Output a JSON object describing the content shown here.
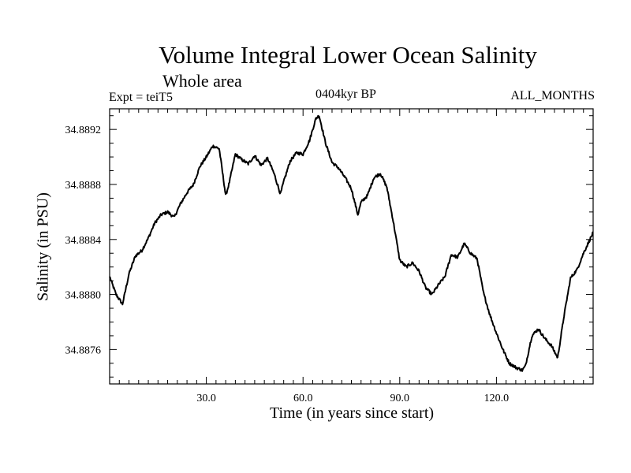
{
  "chart_data": {
    "type": "line",
    "title": "Volume Integral Lower Ocean Salinity",
    "subtitle": "Whole area",
    "left_label": "Expt = teiT5",
    "center_label": "0404kyr BP",
    "right_label": "ALL_MONTHS",
    "xlabel": "Time (in years since start)",
    "ylabel": "Salinity (in PSU)",
    "xlim": [
      0,
      150
    ],
    "ylim": [
      34.88735,
      34.88935
    ],
    "xticks": [
      30,
      60,
      90,
      120
    ],
    "xtick_labels": [
      "30.0",
      "60.0",
      "90.0",
      "120.0"
    ],
    "yticks": [
      34.8876,
      34.888,
      34.8884,
      34.8888,
      34.8892
    ],
    "ytick_labels": [
      "34.8876",
      "34.8880",
      "34.8884",
      "34.8888",
      "34.8892"
    ],
    "color": "#000000",
    "series": [
      {
        "name": "Salinity",
        "x": [
          0,
          2,
          4,
          6,
          8,
          10,
          12,
          14,
          16,
          18,
          20,
          22,
          24,
          26,
          28,
          30,
          32,
          34,
          36,
          37,
          39,
          41,
          43,
          45,
          47,
          49,
          51,
          53,
          54,
          56,
          58,
          60,
          62,
          64,
          65,
          67,
          69,
          71,
          73,
          75,
          77,
          78,
          80,
          82,
          84,
          86,
          88,
          90,
          92,
          94,
          96,
          98,
          100,
          102,
          104,
          106,
          108,
          110,
          112,
          114,
          116,
          118,
          120,
          122,
          124,
          126,
          128,
          129,
          131,
          133,
          135,
          137,
          139,
          141,
          143,
          145,
          147,
          149,
          150
        ],
        "y": [
          34.88813,
          34.888,
          34.88793,
          34.88815,
          34.88828,
          34.88832,
          34.88841,
          34.88852,
          34.88858,
          34.8886,
          34.88856,
          34.88866,
          34.88874,
          34.8888,
          34.88893,
          34.889,
          34.88908,
          34.88906,
          34.88872,
          34.8888,
          34.88902,
          34.88898,
          34.88895,
          34.88901,
          34.88894,
          34.88899,
          34.88888,
          34.88873,
          34.88882,
          34.88897,
          34.88903,
          34.88902,
          34.88912,
          34.88928,
          34.8893,
          34.8891,
          34.88896,
          34.88892,
          34.88885,
          34.88877,
          34.88858,
          34.88867,
          34.88872,
          34.88885,
          34.88888,
          34.88878,
          34.88853,
          34.88825,
          34.8882,
          34.88823,
          34.88817,
          34.88805,
          34.888,
          34.88807,
          34.88813,
          34.88829,
          34.88827,
          34.88837,
          34.8883,
          34.88826,
          34.88801,
          34.88785,
          34.88772,
          34.8876,
          34.8875,
          34.88747,
          34.88745,
          34.88748,
          34.8877,
          34.88775,
          34.88768,
          34.88763,
          34.88754,
          34.88785,
          34.88812,
          34.88818,
          34.8883,
          34.8884,
          34.88845
        ]
      }
    ]
  }
}
